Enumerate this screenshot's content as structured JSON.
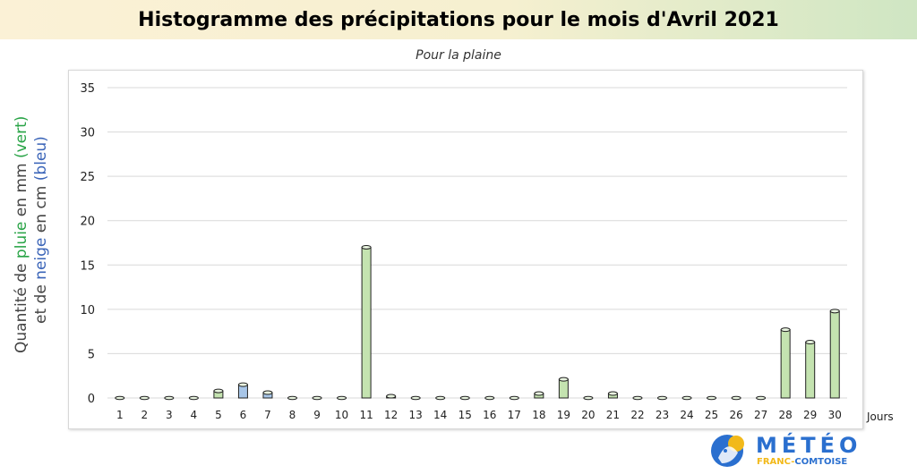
{
  "header": {
    "title": "Histogramme des précipitations pour le mois d'Avril 2021"
  },
  "chart_data": {
    "type": "bar",
    "title": "Histogramme des précipitations pour le mois d'Avril 2021",
    "subtitle": "Pour la plaine",
    "ylabel": {
      "line1": {
        "prefix": "Quantité de ",
        "word1": "pluie",
        "middle": " en mm ",
        "word2": "(vert)"
      },
      "line2": {
        "prefix": "et de ",
        "word1": "neige",
        "middle": " en cm ",
        "word2": "(bleu)"
      }
    },
    "xlabel": "Jours",
    "ylim": [
      0,
      35
    ],
    "yticks": [
      0,
      5,
      10,
      15,
      20,
      25,
      30,
      35
    ],
    "grid": true,
    "categories": [
      "1",
      "2",
      "3",
      "4",
      "5",
      "6",
      "7",
      "8",
      "9",
      "10",
      "11",
      "12",
      "13",
      "14",
      "15",
      "16",
      "17",
      "18",
      "19",
      "20",
      "21",
      "22",
      "23",
      "24",
      "25",
      "26",
      "27",
      "28",
      "29",
      "30"
    ],
    "series": [
      {
        "name": "pluie",
        "color": "#c4e3b0",
        "values": [
          0,
          0,
          0,
          0,
          0.8,
          0,
          0,
          0,
          0,
          0,
          17,
          0.2,
          0,
          0,
          0,
          0,
          0,
          0.5,
          2.1,
          0,
          0.5,
          0,
          0,
          0,
          0,
          0,
          0,
          7.7,
          6.3,
          9.8
        ]
      },
      {
        "name": "neige",
        "color": "#a8c6e8",
        "values": [
          0,
          0,
          0,
          0,
          0,
          1.5,
          0.6,
          0,
          0,
          0,
          0,
          0,
          0,
          0,
          0,
          0,
          0,
          0,
          0,
          0,
          0,
          0,
          0,
          0,
          0,
          0,
          0,
          0,
          0,
          0
        ]
      }
    ]
  },
  "logo": {
    "main": "MÉTÉO",
    "sub1": "FRANC-",
    "sub2": "COMTOISE",
    "color_blue": "#2a6fcf",
    "color_yellow": "#f2b91a"
  }
}
